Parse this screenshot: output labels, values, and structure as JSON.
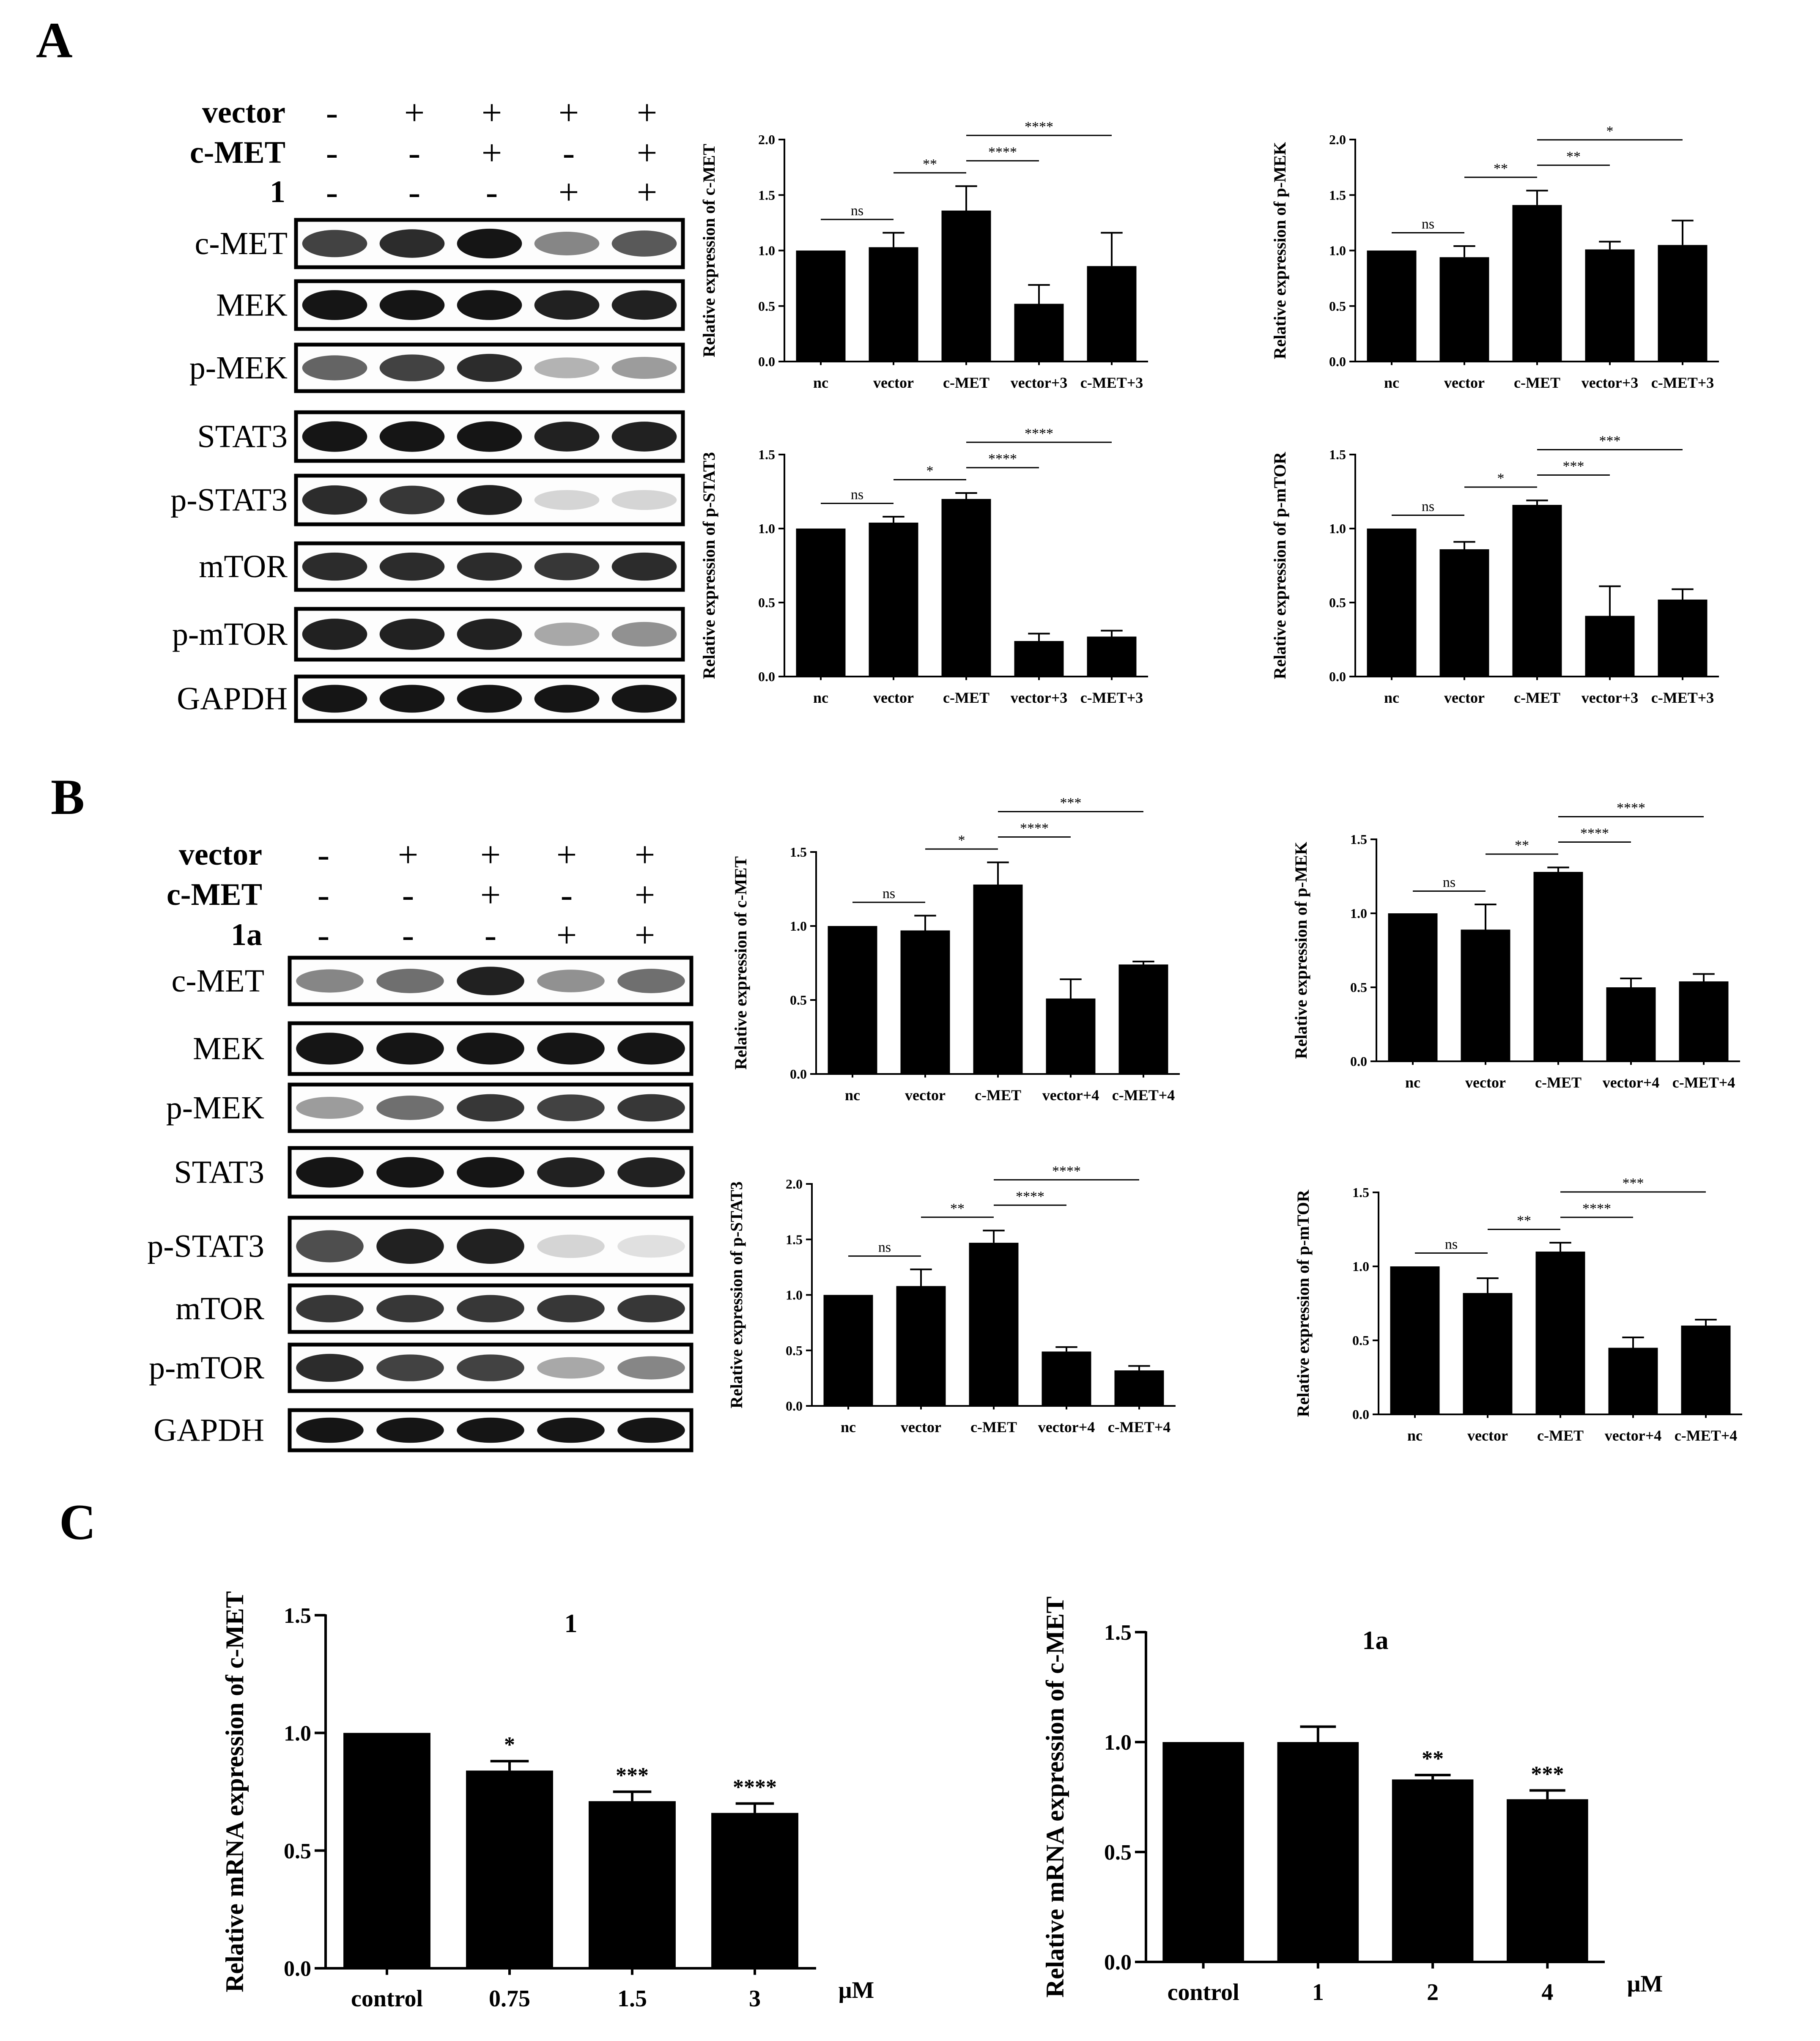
{
  "panels": {
    "a": "A",
    "b": "B",
    "c": "C"
  },
  "blots": [
    {
      "id": "A",
      "row_labels": [
        "vector",
        "c-MET",
        "1"
      ],
      "signs": [
        [
          "-",
          "+",
          "+",
          "+",
          "+"
        ],
        [
          "-",
          "-",
          "+",
          "-",
          "+"
        ],
        [
          "-",
          "-",
          "-",
          "+",
          "+"
        ]
      ],
      "bands": [
        {
          "label": "c-MET",
          "intensity": [
            0.75,
            0.85,
            0.95,
            0.45,
            0.65
          ]
        },
        {
          "label": "MEK",
          "intensity": [
            0.95,
            0.95,
            0.95,
            0.9,
            0.9
          ]
        },
        {
          "label": "p-MEK",
          "intensity": [
            0.6,
            0.75,
            0.85,
            0.25,
            0.35
          ]
        },
        {
          "label": "STAT3",
          "intensity": [
            0.95,
            0.95,
            0.95,
            0.9,
            0.9
          ]
        },
        {
          "label": "p-STAT3",
          "intensity": [
            0.85,
            0.8,
            0.9,
            0.1,
            0.1
          ]
        },
        {
          "label": "mTOR",
          "intensity": [
            0.85,
            0.85,
            0.85,
            0.8,
            0.85
          ]
        },
        {
          "label": "p-mTOR",
          "intensity": [
            0.9,
            0.9,
            0.9,
            0.3,
            0.4
          ]
        },
        {
          "label": "GAPDH",
          "intensity": [
            0.95,
            0.95,
            0.95,
            0.95,
            0.95
          ]
        }
      ]
    },
    {
      "id": "B",
      "row_labels": [
        "vector",
        "c-MET",
        "1a"
      ],
      "signs": [
        [
          "-",
          "+",
          "+",
          "+",
          "+"
        ],
        [
          "-",
          "-",
          "+",
          "-",
          "+"
        ],
        [
          "-",
          "-",
          "-",
          "+",
          "+"
        ]
      ],
      "bands": [
        {
          "label": "c-MET",
          "intensity": [
            0.45,
            0.55,
            0.9,
            0.4,
            0.55
          ]
        },
        {
          "label": "MEK",
          "intensity": [
            0.95,
            0.95,
            0.95,
            0.95,
            0.95
          ]
        },
        {
          "label": "p-MEK",
          "intensity": [
            0.35,
            0.55,
            0.8,
            0.75,
            0.8
          ]
        },
        {
          "label": "STAT3",
          "intensity": [
            0.95,
            0.95,
            0.95,
            0.9,
            0.9
          ]
        },
        {
          "label": "p-STAT3",
          "intensity": [
            0.7,
            0.9,
            0.9,
            0.1,
            0.05
          ]
        },
        {
          "label": "mTOR",
          "intensity": [
            0.8,
            0.8,
            0.8,
            0.8,
            0.8
          ]
        },
        {
          "label": "p-mTOR",
          "intensity": [
            0.85,
            0.75,
            0.75,
            0.3,
            0.45
          ]
        },
        {
          "label": "GAPDH",
          "intensity": [
            0.95,
            0.95,
            0.95,
            0.95,
            0.95
          ]
        }
      ]
    }
  ],
  "chart_data": [
    {
      "type": "bar",
      "ylabel": "Relative expression of c-MET",
      "categories": [
        "nc",
        "vector",
        "c-MET",
        "vector+3",
        "c-MET+3"
      ],
      "values": [
        1.0,
        1.03,
        1.36,
        0.52,
        0.86
      ],
      "errors": [
        0,
        0.13,
        0.22,
        0.17,
        0.3
      ],
      "ylim": [
        0,
        2.0
      ],
      "yticks": [
        "0.0",
        "0.5",
        "1.0",
        "1.5",
        "2.0"
      ],
      "comparisons": [
        {
          "a": 0,
          "b": 1,
          "label": "ns"
        },
        {
          "a": 1,
          "b": 2,
          "label": "**"
        },
        {
          "a": 2,
          "b": 3,
          "label": "****"
        },
        {
          "a": 2,
          "b": 4,
          "label": "****"
        }
      ]
    },
    {
      "type": "bar",
      "ylabel": "Relative expression of p-MEK",
      "categories": [
        "nc",
        "vector",
        "c-MET",
        "vector+3",
        "c-MET+3"
      ],
      "values": [
        1.0,
        0.94,
        1.41,
        1.01,
        1.05
      ],
      "errors": [
        0,
        0.1,
        0.13,
        0.07,
        0.22
      ],
      "ylim": [
        0,
        2.0
      ],
      "yticks": [
        "0.0",
        "0.5",
        "1.0",
        "1.5",
        "2.0"
      ],
      "comparisons": [
        {
          "a": 0,
          "b": 1,
          "label": "ns"
        },
        {
          "a": 1,
          "b": 2,
          "label": "**"
        },
        {
          "a": 2,
          "b": 3,
          "label": "**"
        },
        {
          "a": 2,
          "b": 4,
          "label": "*"
        }
      ]
    },
    {
      "type": "bar",
      "ylabel": "Relative expression of p-STAT3",
      "categories": [
        "nc",
        "vector",
        "c-MET",
        "vector+3",
        "c-MET+3"
      ],
      "values": [
        1.0,
        1.04,
        1.2,
        0.24,
        0.27
      ],
      "errors": [
        0,
        0.04,
        0.04,
        0.05,
        0.04
      ],
      "ylim": [
        0,
        1.5
      ],
      "yticks": [
        "0.0",
        "0.5",
        "1.0",
        "1.5"
      ],
      "comparisons": [
        {
          "a": 0,
          "b": 1,
          "label": "ns"
        },
        {
          "a": 1,
          "b": 2,
          "label": "*"
        },
        {
          "a": 2,
          "b": 3,
          "label": "****"
        },
        {
          "a": 2,
          "b": 4,
          "label": "****"
        }
      ]
    },
    {
      "type": "bar",
      "ylabel": "Relative expression of p-mTOR",
      "categories": [
        "nc",
        "vector",
        "c-MET",
        "vector+3",
        "c-MET+3"
      ],
      "values": [
        1.0,
        0.86,
        1.16,
        0.41,
        0.52
      ],
      "errors": [
        0,
        0.05,
        0.03,
        0.2,
        0.07
      ],
      "ylim": [
        0,
        1.5
      ],
      "yticks": [
        "0.0",
        "0.5",
        "1.0",
        "1.5"
      ],
      "comparisons": [
        {
          "a": 0,
          "b": 1,
          "label": "ns"
        },
        {
          "a": 1,
          "b": 2,
          "label": "*"
        },
        {
          "a": 2,
          "b": 3,
          "label": "***"
        },
        {
          "a": 2,
          "b": 4,
          "label": "***"
        }
      ]
    },
    {
      "type": "bar",
      "ylabel": "Relative expression of c-MET",
      "categories": [
        "nc",
        "vector",
        "c-MET",
        "vector+4",
        "c-MET+4"
      ],
      "values": [
        1.0,
        0.97,
        1.28,
        0.51,
        0.74
      ],
      "errors": [
        0,
        0.1,
        0.15,
        0.13,
        0.02
      ],
      "ylim": [
        0,
        1.5
      ],
      "yticks": [
        "0.0",
        "0.5",
        "1.0",
        "1.5"
      ],
      "comparisons": [
        {
          "a": 0,
          "b": 1,
          "label": "ns"
        },
        {
          "a": 1,
          "b": 2,
          "label": "*"
        },
        {
          "a": 2,
          "b": 3,
          "label": "****"
        },
        {
          "a": 2,
          "b": 4,
          "label": "***"
        }
      ]
    },
    {
      "type": "bar",
      "ylabel": "Relative expression of p-MEK",
      "categories": [
        "nc",
        "vector",
        "c-MET",
        "vector+4",
        "c-MET+4"
      ],
      "values": [
        1.0,
        0.89,
        1.28,
        0.5,
        0.54
      ],
      "errors": [
        0,
        0.17,
        0.03,
        0.06,
        0.05
      ],
      "ylim": [
        0,
        1.5
      ],
      "yticks": [
        "0.0",
        "0.5",
        "1.0",
        "1.5"
      ],
      "comparisons": [
        {
          "a": 0,
          "b": 1,
          "label": "ns"
        },
        {
          "a": 1,
          "b": 2,
          "label": "**"
        },
        {
          "a": 2,
          "b": 3,
          "label": "****"
        },
        {
          "a": 2,
          "b": 4,
          "label": "****"
        }
      ]
    },
    {
      "type": "bar",
      "ylabel": "Relative expression of p-STAT3",
      "categories": [
        "nc",
        "vector",
        "c-MET",
        "vector+4",
        "c-MET+4"
      ],
      "values": [
        1.0,
        1.08,
        1.47,
        0.49,
        0.32
      ],
      "errors": [
        0,
        0.15,
        0.11,
        0.04,
        0.04
      ],
      "ylim": [
        0,
        2.0
      ],
      "yticks": [
        "0.0",
        "0.5",
        "1.0",
        "1.5",
        "2.0"
      ],
      "comparisons": [
        {
          "a": 0,
          "b": 1,
          "label": "ns"
        },
        {
          "a": 1,
          "b": 2,
          "label": "**"
        },
        {
          "a": 2,
          "b": 3,
          "label": "****"
        },
        {
          "a": 2,
          "b": 4,
          "label": "****"
        }
      ]
    },
    {
      "type": "bar",
      "ylabel": "Relative expression of p-mTOR",
      "categories": [
        "nc",
        "vector",
        "c-MET",
        "vector+4",
        "c-MET+4"
      ],
      "values": [
        1.0,
        0.82,
        1.1,
        0.45,
        0.6
      ],
      "errors": [
        0,
        0.1,
        0.06,
        0.07,
        0.04
      ],
      "ylim": [
        0,
        1.5
      ],
      "yticks": [
        "0.0",
        "0.5",
        "1.0",
        "1.5"
      ],
      "comparisons": [
        {
          "a": 0,
          "b": 1,
          "label": "ns"
        },
        {
          "a": 1,
          "b": 2,
          "label": "**"
        },
        {
          "a": 2,
          "b": 3,
          "label": "****"
        },
        {
          "a": 2,
          "b": 4,
          "label": "***"
        }
      ]
    },
    {
      "type": "bar",
      "title": "1",
      "ylabel": "Relative mRNA expression of c-MET",
      "unit": "μM",
      "categories": [
        "control",
        "0.75",
        "1.5",
        "3"
      ],
      "values": [
        1.0,
        0.84,
        0.71,
        0.66
      ],
      "errors": [
        0,
        0.04,
        0.04,
        0.04
      ],
      "significance": [
        "",
        "*",
        "***",
        "****"
      ],
      "ylim": [
        0,
        1.5
      ],
      "yticks": [
        "0.0",
        "0.5",
        "1.0",
        "1.5"
      ]
    },
    {
      "type": "bar",
      "title": "1a",
      "ylabel": "Relative mRNA expression of c-MET",
      "unit": "μM",
      "categories": [
        "control",
        "1",
        "2",
        "4"
      ],
      "values": [
        1.0,
        1.0,
        0.83,
        0.74
      ],
      "errors": [
        0,
        0.07,
        0.02,
        0.04
      ],
      "significance": [
        "",
        "",
        "**",
        "***"
      ],
      "ylim": [
        0,
        1.5
      ],
      "yticks": [
        "0.0",
        "0.5",
        "1.0",
        "1.5"
      ]
    }
  ]
}
